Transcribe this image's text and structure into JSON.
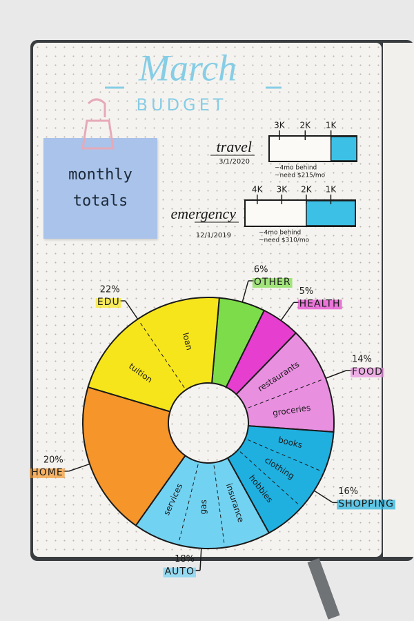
{
  "header": {
    "title": "March",
    "subtitle": "BUDGET"
  },
  "note": {
    "text": "monthly totals"
  },
  "chart_data": [
    {
      "type": "pie",
      "donut": true,
      "categories": [
        "OTHER",
        "HEALTH",
        "FOOD",
        "SHOPPING",
        "AUTO",
        "HOME",
        "EDU"
      ],
      "values": [
        6,
        5,
        14,
        16,
        18,
        20,
        22
      ],
      "value_labels": [
        "6%",
        "5%",
        "14%",
        "16%",
        "18%",
        "20%",
        "22%"
      ],
      "colors": [
        "#7ddc4a",
        "#e63fcf",
        "#e88fe0",
        "#1fb0e0",
        "#72d2f2",
        "#f5952a",
        "#f7e51c"
      ],
      "parts": [
        [],
        [],
        [
          "restaurants",
          "groceries"
        ],
        [
          "books",
          "clothing",
          "hobbies"
        ],
        [
          "insurance",
          "gas",
          "services"
        ],
        [],
        [
          "tuition",
          "loan"
        ]
      ]
    },
    {
      "type": "progress",
      "title": "travel",
      "subtitle": "3/1/2020",
      "annotations": [
        "~4mo behind",
        "~need $215/mo"
      ],
      "values": [
        1000
      ],
      "color": "#3cc0e6",
      "xlim": [
        3400,
        0
      ],
      "xticks": [
        {
          "value": 3000,
          "label": "3K"
        },
        {
          "value": 2000,
          "label": "2K"
        },
        {
          "value": 1000,
          "label": "1K"
        }
      ]
    },
    {
      "type": "progress",
      "title": "emergency",
      "subtitle": "12/1/2019",
      "annotations": [
        "~4mo behind",
        "~need $310/mo"
      ],
      "values": [
        2000
      ],
      "color": "#3cc0e6",
      "xlim": [
        4500,
        0
      ],
      "xticks": [
        {
          "value": 4000,
          "label": "4K"
        },
        {
          "value": 3000,
          "label": "3K"
        },
        {
          "value": 2000,
          "label": "2K"
        },
        {
          "value": 1000,
          "label": "1K"
        }
      ]
    }
  ]
}
